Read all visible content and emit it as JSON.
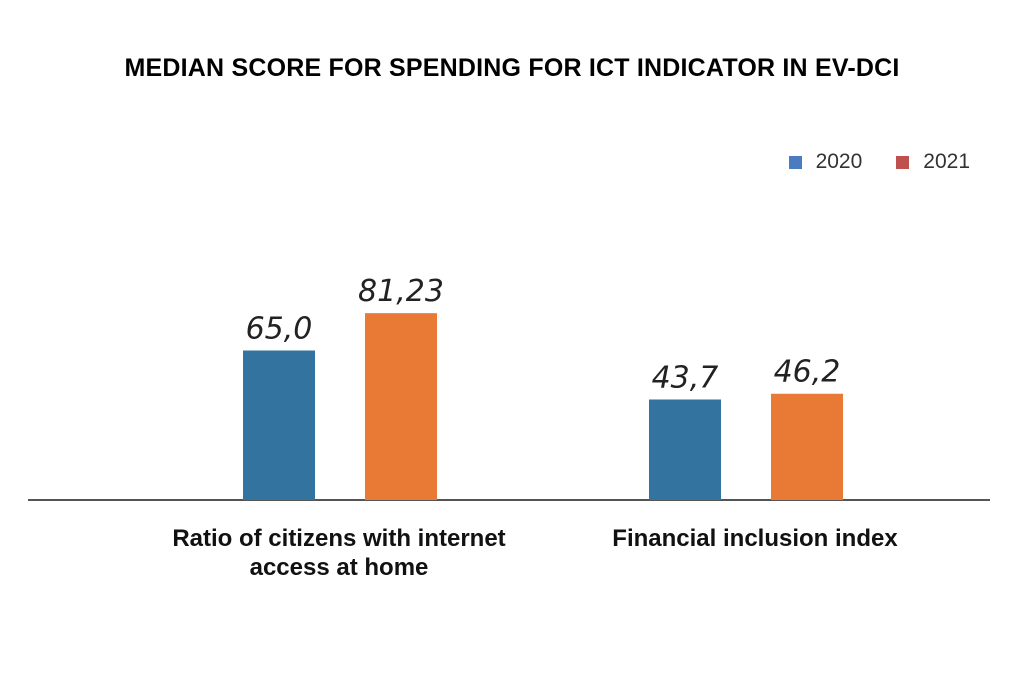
{
  "chart_data": {
    "type": "bar",
    "title": "MEDIAN SCORE FOR SPENDING FOR ICT INDICATOR IN EV-DCI",
    "categories": [
      "Ratio of citizens with internet access at home",
      "Financial inclusion index"
    ],
    "series": [
      {
        "name": "2020",
        "values": [
          65.0,
          43.7
        ],
        "value_labels": [
          "65,0",
          "43,7"
        ],
        "legend_color": "#4a7cc0",
        "bar_color": "#33739f"
      },
      {
        "name": "2021",
        "values": [
          81.23,
          46.2
        ],
        "value_labels": [
          "81,23",
          "46,2"
        ],
        "legend_color": "#c0504d",
        "bar_color": "#e97a35"
      }
    ],
    "ylim": [
      0,
      100
    ],
    "grid": false,
    "legend_position": "top-right",
    "baseline_color": "#555555"
  }
}
